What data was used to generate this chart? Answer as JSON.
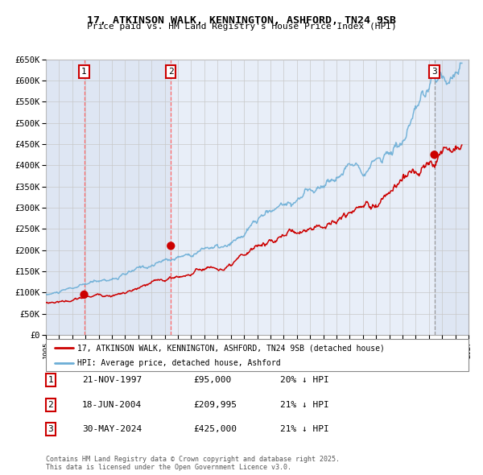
{
  "title1": "17, ATKINSON WALK, KENNINGTON, ASHFORD, TN24 9SB",
  "title2": "Price paid vs. HM Land Registry's House Price Index (HPI)",
  "ylabel_ticks": [
    "£0",
    "£50K",
    "£100K",
    "£150K",
    "£200K",
    "£250K",
    "£300K",
    "£350K",
    "£400K",
    "£450K",
    "£500K",
    "£550K",
    "£600K",
    "£650K"
  ],
  "ytick_values": [
    0,
    50000,
    100000,
    150000,
    200000,
    250000,
    300000,
    350000,
    400000,
    450000,
    500000,
    550000,
    600000,
    650000
  ],
  "xmin": 1995.0,
  "xmax": 2027.0,
  "ymin": 0,
  "ymax": 650000,
  "sale1_date": 1997.896,
  "sale1_price": 95000,
  "sale2_date": 2004.464,
  "sale2_price": 209995,
  "sale3_date": 2024.413,
  "sale3_price": 425000,
  "hpi_color": "#6baed6",
  "price_color": "#cc0000",
  "bg_color": "#e8eef8",
  "grid_color": "#c8c8c8",
  "vline_color_red": "#ff6666",
  "vline_color_grey": "#999999",
  "legend_label_price": "17, ATKINSON WALK, KENNINGTON, ASHFORD, TN24 9SB (detached house)",
  "legend_label_hpi": "HPI: Average price, detached house, Ashford",
  "footer": "Contains HM Land Registry data © Crown copyright and database right 2025.\nThis data is licensed under the Open Government Licence v3.0.",
  "table": [
    {
      "num": "1",
      "date": "21-NOV-1997",
      "price": "£95,000",
      "hpi": "20% ↓ HPI"
    },
    {
      "num": "2",
      "date": "18-JUN-2004",
      "price": "£209,995",
      "hpi": "21% ↓ HPI"
    },
    {
      "num": "3",
      "date": "30-MAY-2024",
      "price": "£425,000",
      "hpi": "21% ↓ HPI"
    }
  ]
}
